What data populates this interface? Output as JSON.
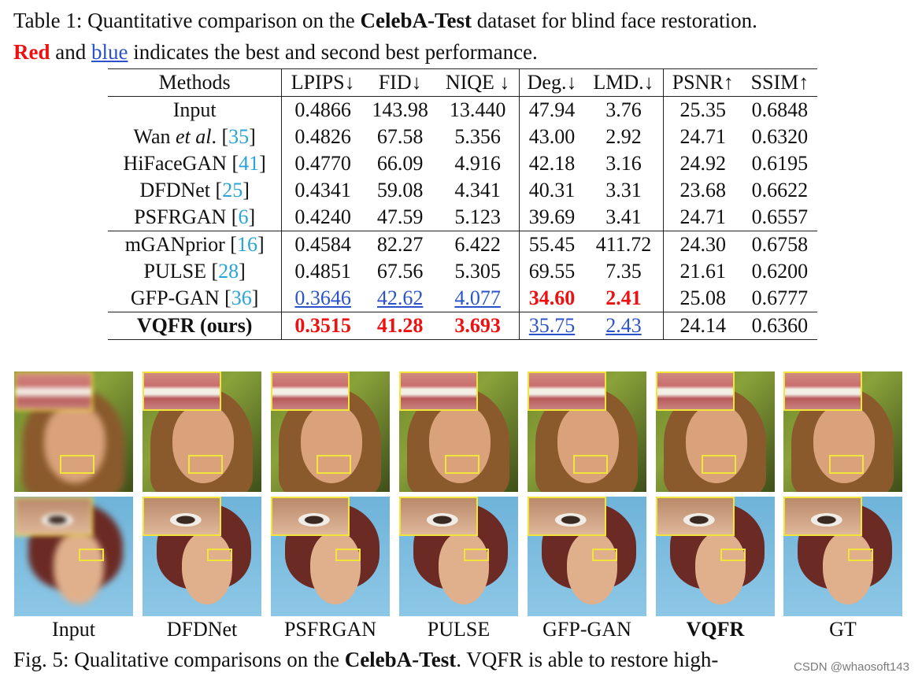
{
  "caption": {
    "prefix": "Table 1: Quantitative comparison on the ",
    "dataset": "CelebA-Test",
    "suffix": " dataset for blind face restoration.",
    "red_word": "Red",
    "and_word": " and ",
    "blue_word": "blue",
    "rest": " indicates the best and second best performance."
  },
  "table": {
    "headers": [
      "Methods",
      "LPIPS↓",
      "FID↓",
      "NIQE ↓",
      "Deg.↓",
      "LMD.↓",
      "PSNR↑",
      "SSIM↑"
    ],
    "rows": [
      {
        "name": "Input",
        "ref": "",
        "values": [
          "0.4866",
          "143.98",
          "13.440",
          "47.94",
          "3.76",
          "25.35",
          "0.6848"
        ]
      },
      {
        "name": "Wan ",
        "name_italic": "et al",
        "name_after": ".",
        "ref": "35",
        "values": [
          "0.4826",
          "67.58",
          "5.356",
          "43.00",
          "2.92",
          "24.71",
          "0.6320"
        ]
      },
      {
        "name": "HiFaceGAN",
        "ref": "41",
        "values": [
          "0.4770",
          "66.09",
          "4.916",
          "42.18",
          "3.16",
          "24.92",
          "0.6195"
        ]
      },
      {
        "name": "DFDNet",
        "ref": "25",
        "values": [
          "0.4341",
          "59.08",
          "4.341",
          "40.31",
          "3.31",
          "23.68",
          "0.6622"
        ]
      },
      {
        "name": "PSFRGAN",
        "ref": "6",
        "values": [
          "0.4240",
          "47.59",
          "5.123",
          "39.69",
          "3.41",
          "24.71",
          "0.6557"
        ]
      },
      {
        "name": "mGANprior",
        "ref": "16",
        "values": [
          "0.4584",
          "82.27",
          "6.422",
          "55.45",
          "411.72",
          "24.30",
          "0.6758"
        ]
      },
      {
        "name": "PULSE",
        "ref": "28",
        "values": [
          "0.4851",
          "67.56",
          "5.305",
          "69.55",
          "7.35",
          "21.61",
          "0.6200"
        ]
      },
      {
        "name": "GFP-GAN",
        "ref": "36",
        "values": [
          "0.3646",
          "42.62",
          "4.077",
          "34.60",
          "2.41",
          "25.08",
          "0.6777"
        ]
      },
      {
        "name": "VQFR (ours)",
        "ref": "",
        "values": [
          "0.3515",
          "41.28",
          "3.693",
          "35.75",
          "2.43",
          "24.14",
          "0.6360"
        ]
      }
    ],
    "highlight": {
      "best_color": "#ee1111",
      "second_color": "#2a53c9"
    }
  },
  "figure": {
    "labels": [
      "Input",
      "DFDNet",
      "PSFRGAN",
      "PULSE",
      "GFP-GAN",
      "VQFR",
      "GT"
    ],
    "caption_prefix": "Fig. 5: Qualitative comparisons on the ",
    "caption_dataset": "CelebA-Test",
    "caption_suffix": ". VQFR is able to restore high-"
  },
  "watermark": "CSDN @whaosoft143"
}
